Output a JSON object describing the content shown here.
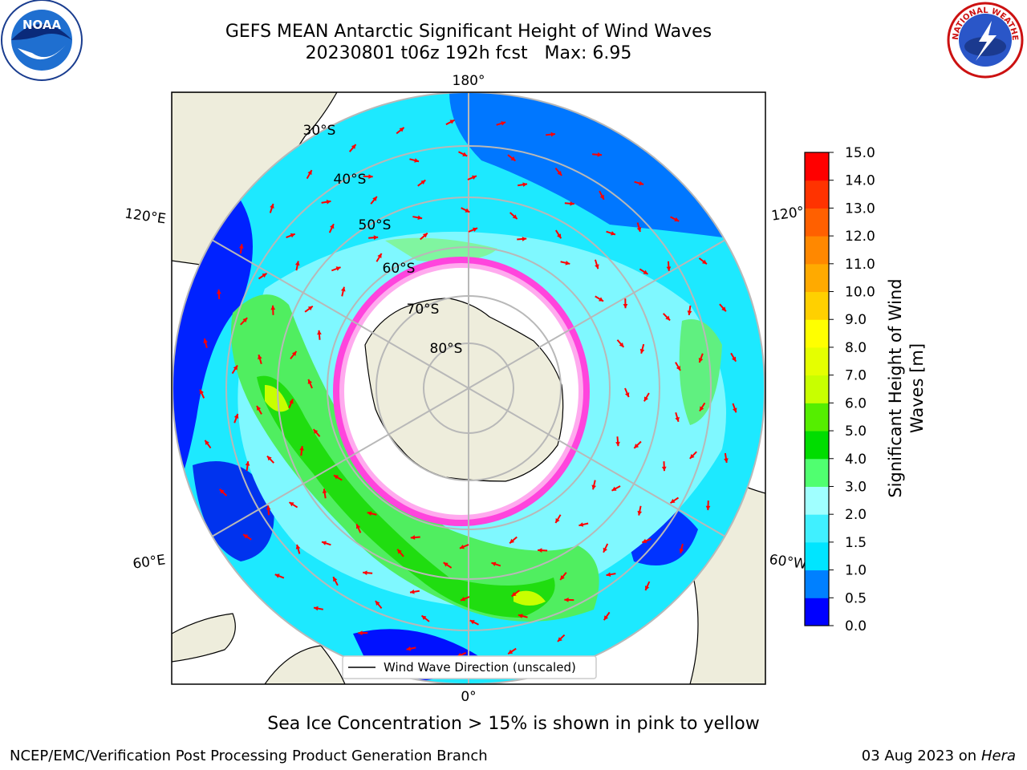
{
  "header": {
    "title_line1": "GEFS MEAN Antarctic Significant Height of Wind Waves",
    "title_line2": "20230801 t06z 192h fcst   Max: 6.95"
  },
  "map": {
    "projection": "south polar stereographic",
    "lon_labels": [
      "180°",
      "120°E",
      "120°",
      "60°E",
      "60°W",
      "0°"
    ],
    "lat_labels": [
      "30°S",
      "40°S",
      "50°S",
      "60°S",
      "70°S",
      "80°S"
    ],
    "legend_label": "Wind Wave Direction (unscaled)",
    "arrow_color": "#ff0000"
  },
  "colorbar": {
    "label_line1": "Significant Height of Wind",
    "label_line2": "Waves [m]",
    "ticks": [
      "0.0",
      "0.5",
      "1.0",
      "1.5",
      "2.0",
      "3.0",
      "4.0",
      "5.0",
      "6.0",
      "7.0",
      "8.0",
      "9.0",
      "10.0",
      "11.0",
      "12.0",
      "13.0",
      "14.0",
      "15.0"
    ],
    "colors": [
      "#0000ff",
      "#0080ff",
      "#00e5ff",
      "#40f0ff",
      "#a0ffff",
      "#50ff70",
      "#00dd00",
      "#55ee00",
      "#c8ff00",
      "#e5ff00",
      "#ffff00",
      "#ffd000",
      "#ffaa00",
      "#ff8800",
      "#ff6000",
      "#ff3300",
      "#ff0000"
    ]
  },
  "caption": "Sea Ice Concentration > 15% is shown in pink to yellow",
  "footer": {
    "left": "NCEP/EMC/Verification Post Processing Product Generation Branch",
    "right_date": "03 Aug 2023 on",
    "right_host": "Hera"
  },
  "logos": {
    "noaa": "NOAA",
    "nws_ring": "NATIONAL WEATHER SERVICE"
  }
}
